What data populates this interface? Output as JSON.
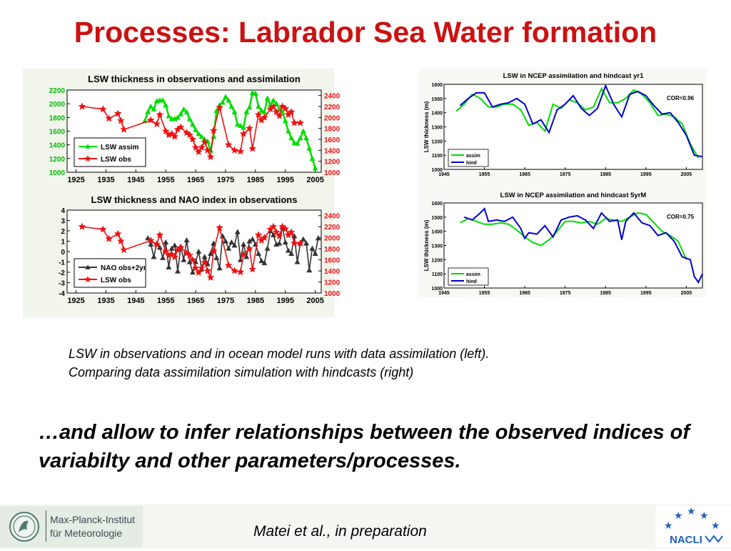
{
  "slide": {
    "title": "Processes: Labrador Sea Water formation",
    "caption_line1": "LSW in observations and in ocean model runs with data assimilation (left).",
    "caption_line2": "Comparing data assimilation simulation with hindcasts (right)",
    "statement": "…and allow to infer relationships between the observed indices of variabilty and other parameters/processes.",
    "citation": "Matei et al., in preparation",
    "institute_line1": "Max-Planck-Institut",
    "institute_line2": "für Meteorologie",
    "partner_logo": "NACLI"
  },
  "colors": {
    "title": "#cc1111",
    "green": "#00dd00",
    "red": "#ee1111",
    "blue": "#0000cc",
    "dark": "#333333"
  },
  "chart_data": [
    {
      "type": "line",
      "title": "LSW thickness in observations and assimilation",
      "x_ticks": [
        1925,
        1935,
        1945,
        1955,
        1965,
        1975,
        1985,
        1995,
        2005
      ],
      "xlim": [
        1922,
        2007
      ],
      "y_left": {
        "ticks": [
          1000,
          1200,
          1400,
          1600,
          1800,
          2000,
          2200
        ],
        "lim": [
          1000,
          2200
        ],
        "color": "#00bb00"
      },
      "y_right": {
        "ticks": [
          1000,
          1200,
          1400,
          1600,
          1800,
          2000,
          2200,
          2400
        ],
        "lim": [
          1000,
          2500
        ],
        "color": "#ee1111"
      },
      "legend_position": "bottom-left",
      "series": [
        {
          "name": "LSW assim",
          "axis": "left",
          "color": "#00dd00",
          "marker": "triangle",
          "x": [
            1948,
            1949,
            1950,
            1951,
            1952,
            1953,
            1954,
            1955,
            1956,
            1957,
            1958,
            1959,
            1960,
            1961,
            1962,
            1963,
            1964,
            1965,
            1966,
            1967,
            1968,
            1969,
            1970,
            1971,
            1972,
            1973,
            1974,
            1975,
            1976,
            1977,
            1978,
            1979,
            1980,
            1981,
            1982,
            1983,
            1984,
            1985,
            1986,
            1987,
            1988,
            1989,
            1990,
            1991,
            1992,
            1993,
            1994,
            1995,
            1996,
            1997,
            1998,
            1999,
            2000,
            2001,
            2002,
            2003,
            2004,
            2005
          ],
          "y": [
            1750,
            1880,
            1960,
            1920,
            2040,
            2050,
            2050,
            1980,
            1820,
            1780,
            1780,
            1800,
            1850,
            1920,
            1880,
            1780,
            1700,
            1620,
            1560,
            1520,
            1480,
            1450,
            1320,
            1520,
            1900,
            1980,
            2020,
            2100,
            2050,
            1960,
            1880,
            1700,
            1680,
            1650,
            1880,
            1950,
            2160,
            2150,
            1960,
            1900,
            1880,
            2080,
            1980,
            2050,
            2000,
            1920,
            1880,
            1750,
            1600,
            1500,
            1430,
            1420,
            1500,
            1600,
            1500,
            1350,
            1200,
            1060
          ]
        },
        {
          "name": "LSW obs",
          "axis": "right",
          "color": "#ee1111",
          "marker": "star",
          "x": [
            1927,
            1934,
            1936,
            1939,
            1940,
            1941,
            1950,
            1952,
            1953,
            1955,
            1956,
            1957,
            1958,
            1959,
            1960,
            1962,
            1963,
            1964,
            1965,
            1966,
            1967,
            1968,
            1969,
            1970,
            1971,
            1973,
            1976,
            1978,
            1980,
            1981,
            1983,
            1984,
            1986,
            1987,
            1988,
            1990,
            1991,
            1992,
            1993,
            1994,
            1995,
            1996,
            1997,
            1998,
            2000
          ],
          "y": [
            2200,
            2150,
            1980,
            2070,
            1940,
            1780,
            1950,
            1880,
            2050,
            1750,
            1680,
            1700,
            1650,
            1780,
            1820,
            1720,
            1680,
            1600,
            1450,
            1370,
            1450,
            1550,
            1400,
            1280,
            1760,
            2180,
            1500,
            1400,
            1380,
            1700,
            1800,
            1430,
            2050,
            1950,
            2000,
            2150,
            2200,
            2100,
            2030,
            2200,
            2160,
            2050,
            2100,
            1900,
            1900
          ]
        }
      ]
    },
    {
      "type": "line",
      "title": "LSW thickness and NAO index in observations",
      "x_ticks": [
        1925,
        1935,
        1945,
        1955,
        1965,
        1975,
        1985,
        1995,
        2005
      ],
      "xlim": [
        1922,
        2007
      ],
      "y_left": {
        "ticks": [
          -4,
          -3,
          -2,
          -1,
          0,
          1,
          2,
          3,
          4
        ],
        "lim": [
          -4,
          4
        ],
        "color": "#000000"
      },
      "y_right": {
        "ticks": [
          1000,
          1200,
          1400,
          1600,
          1800,
          2000,
          2200,
          2400
        ],
        "lim": [
          1000,
          2500
        ],
        "color": "#ee1111"
      },
      "legend_position": "bottom-left",
      "series": [
        {
          "name": "NAO obs+2yr",
          "axis": "left",
          "color": "#333333",
          "marker": "triangle",
          "x": [
            1949,
            1950,
            1951,
            1952,
            1953,
            1954,
            1955,
            1956,
            1957,
            1958,
            1959,
            1960,
            1961,
            1962,
            1963,
            1964,
            1965,
            1966,
            1967,
            1968,
            1969,
            1970,
            1971,
            1972,
            1973,
            1974,
            1975,
            1976,
            1977,
            1978,
            1979,
            1980,
            1981,
            1982,
            1983,
            1984,
            1985,
            1986,
            1987,
            1988,
            1989,
            1990,
            1991,
            1992,
            1993,
            1994,
            1995,
            1996,
            1997,
            1998,
            1999,
            2000,
            2001,
            2002,
            2003,
            2004,
            2005,
            2006
          ],
          "y": [
            1.3,
            0.7,
            -0.5,
            0.8,
            0.4,
            -0.6,
            0.9,
            -1.5,
            0.3,
            0.6,
            -1.9,
            0.5,
            -0.8,
            1.1,
            -1.0,
            -2.0,
            -1.0,
            0.0,
            -1.7,
            -0.5,
            -1.2,
            -0.2,
            0.8,
            -0.6,
            -1.6,
            1.5,
            1.0,
            0.3,
            0.9,
            0.6,
            1.9,
            -0.8,
            0.7,
            -0.5,
            1.0,
            1.2,
            0.7,
            -0.2,
            -0.9,
            -1.1,
            0.3,
            2.0,
            1.6,
            0.7,
            0.8,
            2.4,
            0.9,
            0.1,
            -0.2,
            1.5,
            -1.0,
            0.8,
            1.2,
            0.8,
            -1.8,
            0.3,
            -0.2,
            1.3
          ]
        },
        {
          "name": "LSW obs",
          "axis": "right",
          "color": "#ee1111",
          "marker": "star",
          "x": [
            1927,
            1934,
            1936,
            1939,
            1940,
            1941,
            1950,
            1952,
            1953,
            1955,
            1956,
            1957,
            1958,
            1959,
            1960,
            1962,
            1963,
            1964,
            1965,
            1966,
            1967,
            1968,
            1969,
            1970,
            1971,
            1973,
            1976,
            1978,
            1980,
            1981,
            1983,
            1984,
            1986,
            1987,
            1988,
            1990,
            1991,
            1992,
            1993,
            1994,
            1995,
            1996,
            1997,
            1998,
            2000
          ],
          "y": [
            2200,
            2150,
            1980,
            2070,
            1940,
            1780,
            1950,
            1880,
            2050,
            1750,
            1680,
            1700,
            1650,
            1780,
            1820,
            1720,
            1680,
            1600,
            1450,
            1370,
            1450,
            1550,
            1400,
            1280,
            1760,
            2180,
            1500,
            1400,
            1380,
            1700,
            1800,
            1430,
            2050,
            1950,
            2000,
            2150,
            2200,
            2100,
            2030,
            2200,
            2160,
            2050,
            2100,
            1900,
            1900
          ]
        }
      ]
    },
    {
      "type": "line",
      "title": "LSW in NCEP assimilation and hindcast yr1",
      "annotation": "COR=0.96",
      "ylabel": "LSW thickness (m)",
      "x_ticks": [
        1945,
        1955,
        1965,
        1975,
        1985,
        1995,
        2005
      ],
      "xlim": [
        1945,
        2009
      ],
      "y_ticks": [
        1000,
        1100,
        1200,
        1300,
        1400,
        1500,
        1600
      ],
      "ylim": [
        1000,
        1600
      ],
      "legend_position": "bottom-right",
      "series": [
        {
          "name": "assim",
          "color": "#00dd00",
          "x": [
            1948,
            1950,
            1952,
            1954,
            1956,
            1958,
            1960,
            1962,
            1964,
            1966,
            1968,
            1970,
            1972,
            1974,
            1976,
            1978,
            1980,
            1982,
            1984,
            1986,
            1988,
            1990,
            1992,
            1994,
            1996,
            1998,
            2000,
            2002,
            2004,
            2006,
            2008
          ],
          "y": [
            1410,
            1460,
            1530,
            1500,
            1440,
            1440,
            1460,
            1460,
            1420,
            1310,
            1330,
            1270,
            1460,
            1430,
            1490,
            1470,
            1420,
            1440,
            1570,
            1470,
            1470,
            1500,
            1560,
            1530,
            1470,
            1380,
            1390,
            1370,
            1320,
            1180,
            1080
          ]
        },
        {
          "name": "hind",
          "color": "#0000cc",
          "x": [
            1949,
            1951,
            1953,
            1955,
            1957,
            1959,
            1961,
            1963,
            1965,
            1967,
            1969,
            1971,
            1973,
            1975,
            1977,
            1979,
            1981,
            1983,
            1985,
            1987,
            1989,
            1991,
            1993,
            1995,
            1997,
            1999,
            2001,
            2003,
            2005,
            2007,
            2009
          ],
          "y": [
            1450,
            1500,
            1540,
            1540,
            1440,
            1460,
            1470,
            1500,
            1460,
            1320,
            1350,
            1260,
            1420,
            1460,
            1520,
            1430,
            1380,
            1430,
            1590,
            1460,
            1370,
            1530,
            1550,
            1520,
            1450,
            1390,
            1400,
            1330,
            1240,
            1100,
            1090
          ]
        }
      ]
    },
    {
      "type": "line",
      "title": "LSW in NCEP assimilation and hindcast 5yrM",
      "annotation": "COR=0.75",
      "ylabel": "LSW thickness (m)",
      "x_ticks": [
        1945,
        1955,
        1965,
        1975,
        1985,
        1995,
        2005
      ],
      "xlim": [
        1945,
        2009
      ],
      "y_ticks": [
        1000,
        1100,
        1200,
        1300,
        1400,
        1500,
        1600
      ],
      "ylim": [
        1000,
        1600
      ],
      "legend_position": "bottom-right",
      "series": [
        {
          "name": "assim",
          "color": "#00dd00",
          "x": [
            1949,
            1951,
            1953,
            1955,
            1957,
            1959,
            1961,
            1963,
            1965,
            1967,
            1969,
            1971,
            1973,
            1975,
            1977,
            1979,
            1981,
            1983,
            1985,
            1987,
            1989,
            1991,
            1993,
            1995,
            1997,
            1999,
            2001,
            2003,
            2005
          ],
          "y": [
            1460,
            1490,
            1470,
            1450,
            1450,
            1460,
            1450,
            1410,
            1360,
            1320,
            1300,
            1340,
            1400,
            1470,
            1470,
            1460,
            1470,
            1450,
            1490,
            1480,
            1470,
            1500,
            1530,
            1520,
            1460,
            1400,
            1370,
            1330,
            1200
          ]
        },
        {
          "name": "hind",
          "color": "#0000cc",
          "x": [
            1950,
            1952,
            1954,
            1955,
            1956,
            1958,
            1960,
            1962,
            1964,
            1965,
            1966,
            1968,
            1970,
            1972,
            1974,
            1976,
            1978,
            1980,
            1982,
            1984,
            1986,
            1988,
            1989,
            1990,
            1992,
            1994,
            1996,
            1998,
            2000,
            2002,
            2004,
            2006,
            2007,
            2008,
            2009
          ],
          "y": [
            1500,
            1480,
            1530,
            1560,
            1470,
            1480,
            1470,
            1500,
            1420,
            1350,
            1390,
            1380,
            1440,
            1360,
            1480,
            1500,
            1510,
            1480,
            1420,
            1530,
            1470,
            1480,
            1340,
            1470,
            1530,
            1460,
            1440,
            1370,
            1390,
            1330,
            1220,
            1200,
            1080,
            1040,
            1100
          ]
        }
      ]
    }
  ]
}
